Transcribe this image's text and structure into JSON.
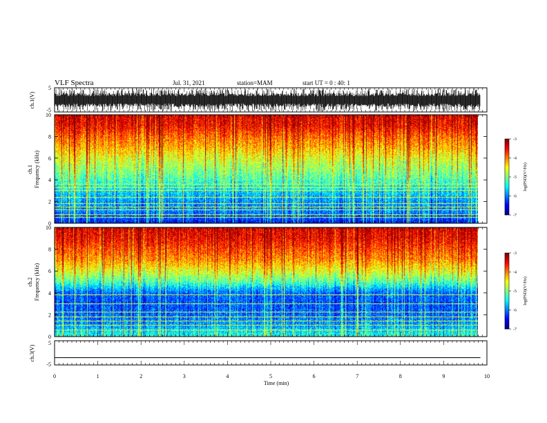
{
  "header": {
    "title": "VLF Spectra",
    "date": "Jul. 31, 2021",
    "station": "station=MAM",
    "start": "start UT = 0 : 40: 1"
  },
  "colorbar_label": "log(PSD)(V²/Hz)",
  "colors": {
    "jet": [
      "#00008f",
      "#0000ff",
      "#0080ff",
      "#00ffff",
      "#80ff80",
      "#ffff00",
      "#ff8000",
      "#ff0000",
      "#800000"
    ]
  },
  "chart_data": [
    {
      "type": "line",
      "name": "ch1-waveform",
      "ylabel": "ch.1(V)",
      "ylim": [
        -5,
        5
      ],
      "yticks": [
        "5",
        "-5"
      ],
      "signal": "noisy waveform, roughly -2 to 3 V with frequent spikes to ±4.5 V",
      "x_range_min": [
        0,
        9.85
      ]
    },
    {
      "type": "heatmap",
      "name": "ch1-spectrogram",
      "ylabel_line1": "ch.1",
      "ylabel_line2": "Frequency (kHz)",
      "ylim": [
        0,
        10
      ],
      "yticks": [
        "0",
        "2",
        "4",
        "6",
        "8",
        "10"
      ],
      "x_range_min": [
        0,
        9.85
      ],
      "colorbar": {
        "range": [
          -7,
          -3
        ],
        "ticks": [
          "-3",
          "-4",
          "-5",
          "-6",
          "-7"
        ]
      },
      "horizontal_line_kHz": [
        0.5,
        0.8,
        1.2,
        1.5,
        1.8,
        2.4,
        3.0,
        3.3,
        3.6
      ],
      "level_profile_log_psd": [
        [
          0,
          -6.4
        ],
        [
          0.5,
          -6.2
        ],
        [
          1,
          -6.0
        ],
        [
          2,
          -5.9
        ],
        [
          3,
          -5.6
        ],
        [
          4,
          -5.2
        ],
        [
          5,
          -4.9
        ],
        [
          6,
          -4.6
        ],
        [
          7,
          -4.2
        ],
        [
          8,
          -3.9
        ],
        [
          9,
          -3.5
        ],
        [
          10,
          -3.4
        ]
      ]
    },
    {
      "type": "heatmap",
      "name": "ch2-spectrogram",
      "ylabel_line1": "ch.2",
      "ylabel_line2": "Frequency (kHz)",
      "ylim": [
        0,
        10
      ],
      "yticks": [
        "0",
        "2",
        "4",
        "6",
        "8",
        "10"
      ],
      "x_range_min": [
        0,
        9.85
      ],
      "colorbar": {
        "range": [
          -7,
          -3
        ],
        "ticks": [
          "-3",
          "-4",
          "-5",
          "-6",
          "-7"
        ]
      },
      "horizontal_line_kHz": [
        0.6,
        1.0,
        1.4,
        1.8,
        2.2,
        3.0,
        3.8
      ],
      "level_profile_log_psd": [
        [
          0,
          -5.4
        ],
        [
          0.5,
          -5.6
        ],
        [
          1,
          -5.9
        ],
        [
          2,
          -6.1
        ],
        [
          3,
          -6.2
        ],
        [
          4,
          -6.1
        ],
        [
          5,
          -5.2
        ],
        [
          6,
          -4.6
        ],
        [
          7,
          -4.1
        ],
        [
          8,
          -3.8
        ],
        [
          9,
          -3.5
        ],
        [
          10,
          -3.4
        ]
      ]
    },
    {
      "type": "line",
      "name": "ch3-waveform",
      "ylabel": "ch.3(V)",
      "ylim": [
        -5,
        5
      ],
      "yticks": [
        "5",
        "-5"
      ],
      "y_constant": -2,
      "x_range_min": [
        0,
        9.85
      ]
    }
  ],
  "x_axis": {
    "label": "Time (min)",
    "range": [
      0,
      10
    ],
    "ticks": [
      "0",
      "1",
      "2",
      "3",
      "4",
      "5",
      "6",
      "7",
      "8",
      "9",
      "10"
    ]
  }
}
